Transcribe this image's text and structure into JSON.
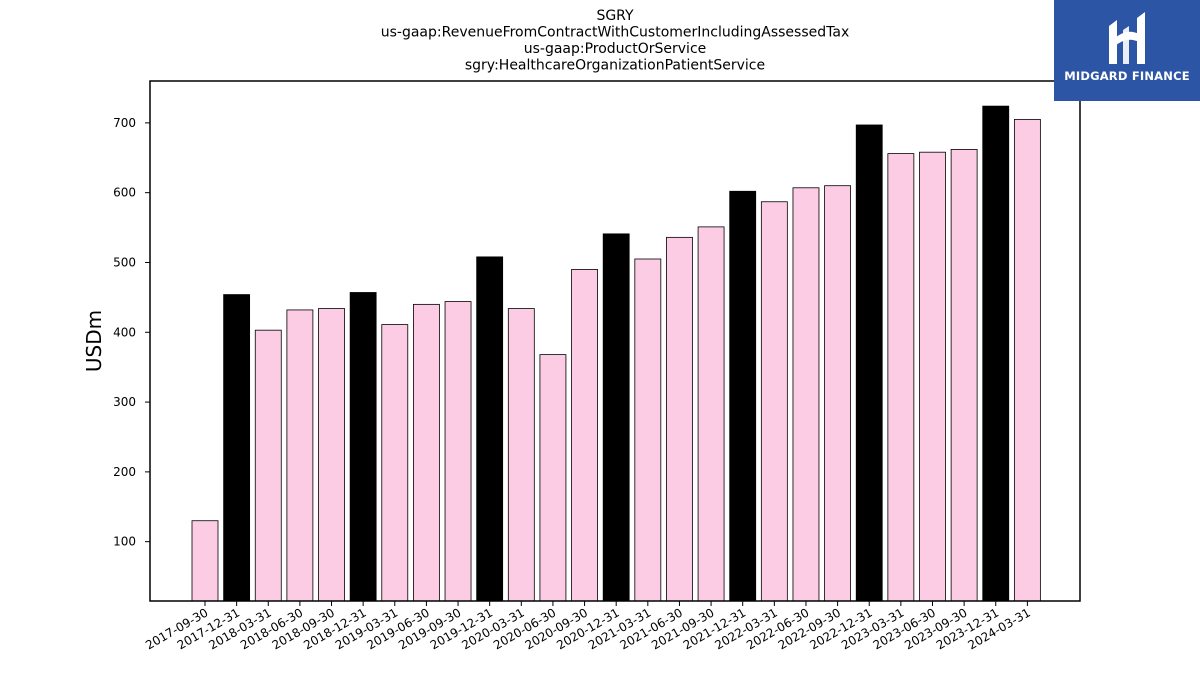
{
  "chart_data": {
    "type": "bar",
    "title_lines": [
      "SGRY",
      "us-gaap:RevenueFromContractWithCustomerIncludingAssessedTax",
      "us-gaap:ProductOrService",
      "sgry:HealthcareOrganizationPatientService"
    ],
    "xlabel": "",
    "ylabel": "USDm",
    "ylim": [
      15,
      760
    ],
    "yticks": [
      100,
      200,
      300,
      400,
      500,
      600,
      700
    ],
    "grid": false,
    "categories": [
      "2017-09-30",
      "2017-12-31",
      "2018-03-31",
      "2018-06-30",
      "2018-09-30",
      "2018-12-31",
      "2019-03-31",
      "2019-06-30",
      "2019-09-30",
      "2019-12-31",
      "2020-03-31",
      "2020-06-30",
      "2020-09-30",
      "2020-12-31",
      "2021-03-31",
      "2021-06-30",
      "2021-09-30",
      "2021-12-31",
      "2022-03-31",
      "2022-06-30",
      "2022-09-30",
      "2022-12-31",
      "2023-03-31",
      "2023-06-30",
      "2023-09-30",
      "2023-12-31",
      "2024-03-31"
    ],
    "values": [
      130,
      454,
      403,
      432,
      434,
      457,
      411,
      440,
      444,
      508,
      434,
      368,
      490,
      541,
      505,
      536,
      551,
      602,
      587,
      607,
      610,
      697,
      656,
      658,
      662,
      724,
      705
    ],
    "bar_colors": [
      "#fccce4",
      "#000000",
      "#fccce4",
      "#fccce4",
      "#fccce4",
      "#000000",
      "#fccce4",
      "#fccce4",
      "#fccce4",
      "#000000",
      "#fccce4",
      "#fccce4",
      "#fccce4",
      "#000000",
      "#fccce4",
      "#fccce4",
      "#fccce4",
      "#000000",
      "#fccce4",
      "#fccce4",
      "#fccce4",
      "#000000",
      "#fccce4",
      "#fccce4",
      "#fccce4",
      "#000000",
      "#fccce4"
    ]
  },
  "logo": {
    "text": "MIDGARD FINANCE",
    "background": "#2d55a6"
  }
}
